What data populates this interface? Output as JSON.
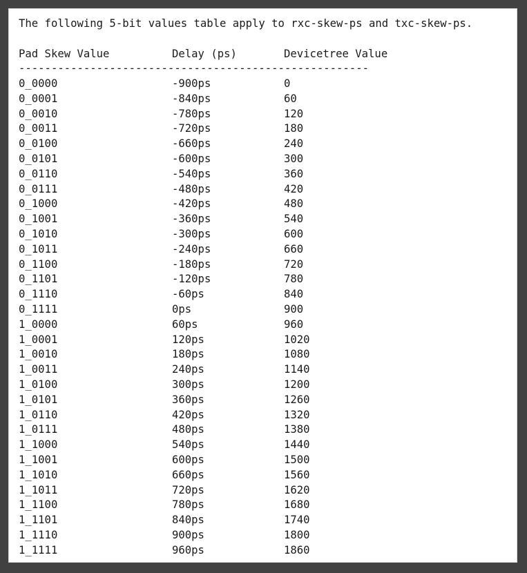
{
  "intro": "The following 5-bit values table apply to rxc-skew-ps and txc-skew-ps.",
  "columns": [
    "Pad Skew Value",
    "Delay (ps)",
    "Devicetree Value"
  ],
  "divider": "------------------------------------------------------",
  "rows": [
    [
      "0_0000",
      "-900ps",
      "0"
    ],
    [
      "0_0001",
      "-840ps",
      "60"
    ],
    [
      "0_0010",
      "-780ps",
      "120"
    ],
    [
      "0_0011",
      "-720ps",
      "180"
    ],
    [
      "0_0100",
      "-660ps",
      "240"
    ],
    [
      "0_0101",
      "-600ps",
      "300"
    ],
    [
      "0_0110",
      "-540ps",
      "360"
    ],
    [
      "0_0111",
      "-480ps",
      "420"
    ],
    [
      "0_1000",
      "-420ps",
      "480"
    ],
    [
      "0_1001",
      "-360ps",
      "540"
    ],
    [
      "0_1010",
      "-300ps",
      "600"
    ],
    [
      "0_1011",
      "-240ps",
      "660"
    ],
    [
      "0_1100",
      "-180ps",
      "720"
    ],
    [
      "0_1101",
      "-120ps",
      "780"
    ],
    [
      "0_1110",
      "-60ps",
      "840"
    ],
    [
      "0_1111",
      "0ps",
      "900"
    ],
    [
      "1_0000",
      "60ps",
      "960"
    ],
    [
      "1_0001",
      "120ps",
      "1020"
    ],
    [
      "1_0010",
      "180ps",
      "1080"
    ],
    [
      "1_0011",
      "240ps",
      "1140"
    ],
    [
      "1_0100",
      "300ps",
      "1200"
    ],
    [
      "1_0101",
      "360ps",
      "1260"
    ],
    [
      "1_0110",
      "420ps",
      "1320"
    ],
    [
      "1_0111",
      "480ps",
      "1380"
    ],
    [
      "1_1000",
      "540ps",
      "1440"
    ],
    [
      "1_1001",
      "600ps",
      "1500"
    ],
    [
      "1_1010",
      "660ps",
      "1560"
    ],
    [
      "1_1011",
      "720ps",
      "1620"
    ],
    [
      "1_1100",
      "780ps",
      "1680"
    ],
    [
      "1_1101",
      "840ps",
      "1740"
    ],
    [
      "1_1110",
      "900ps",
      "1800"
    ],
    [
      "1_1111",
      "960ps",
      "1860"
    ]
  ]
}
